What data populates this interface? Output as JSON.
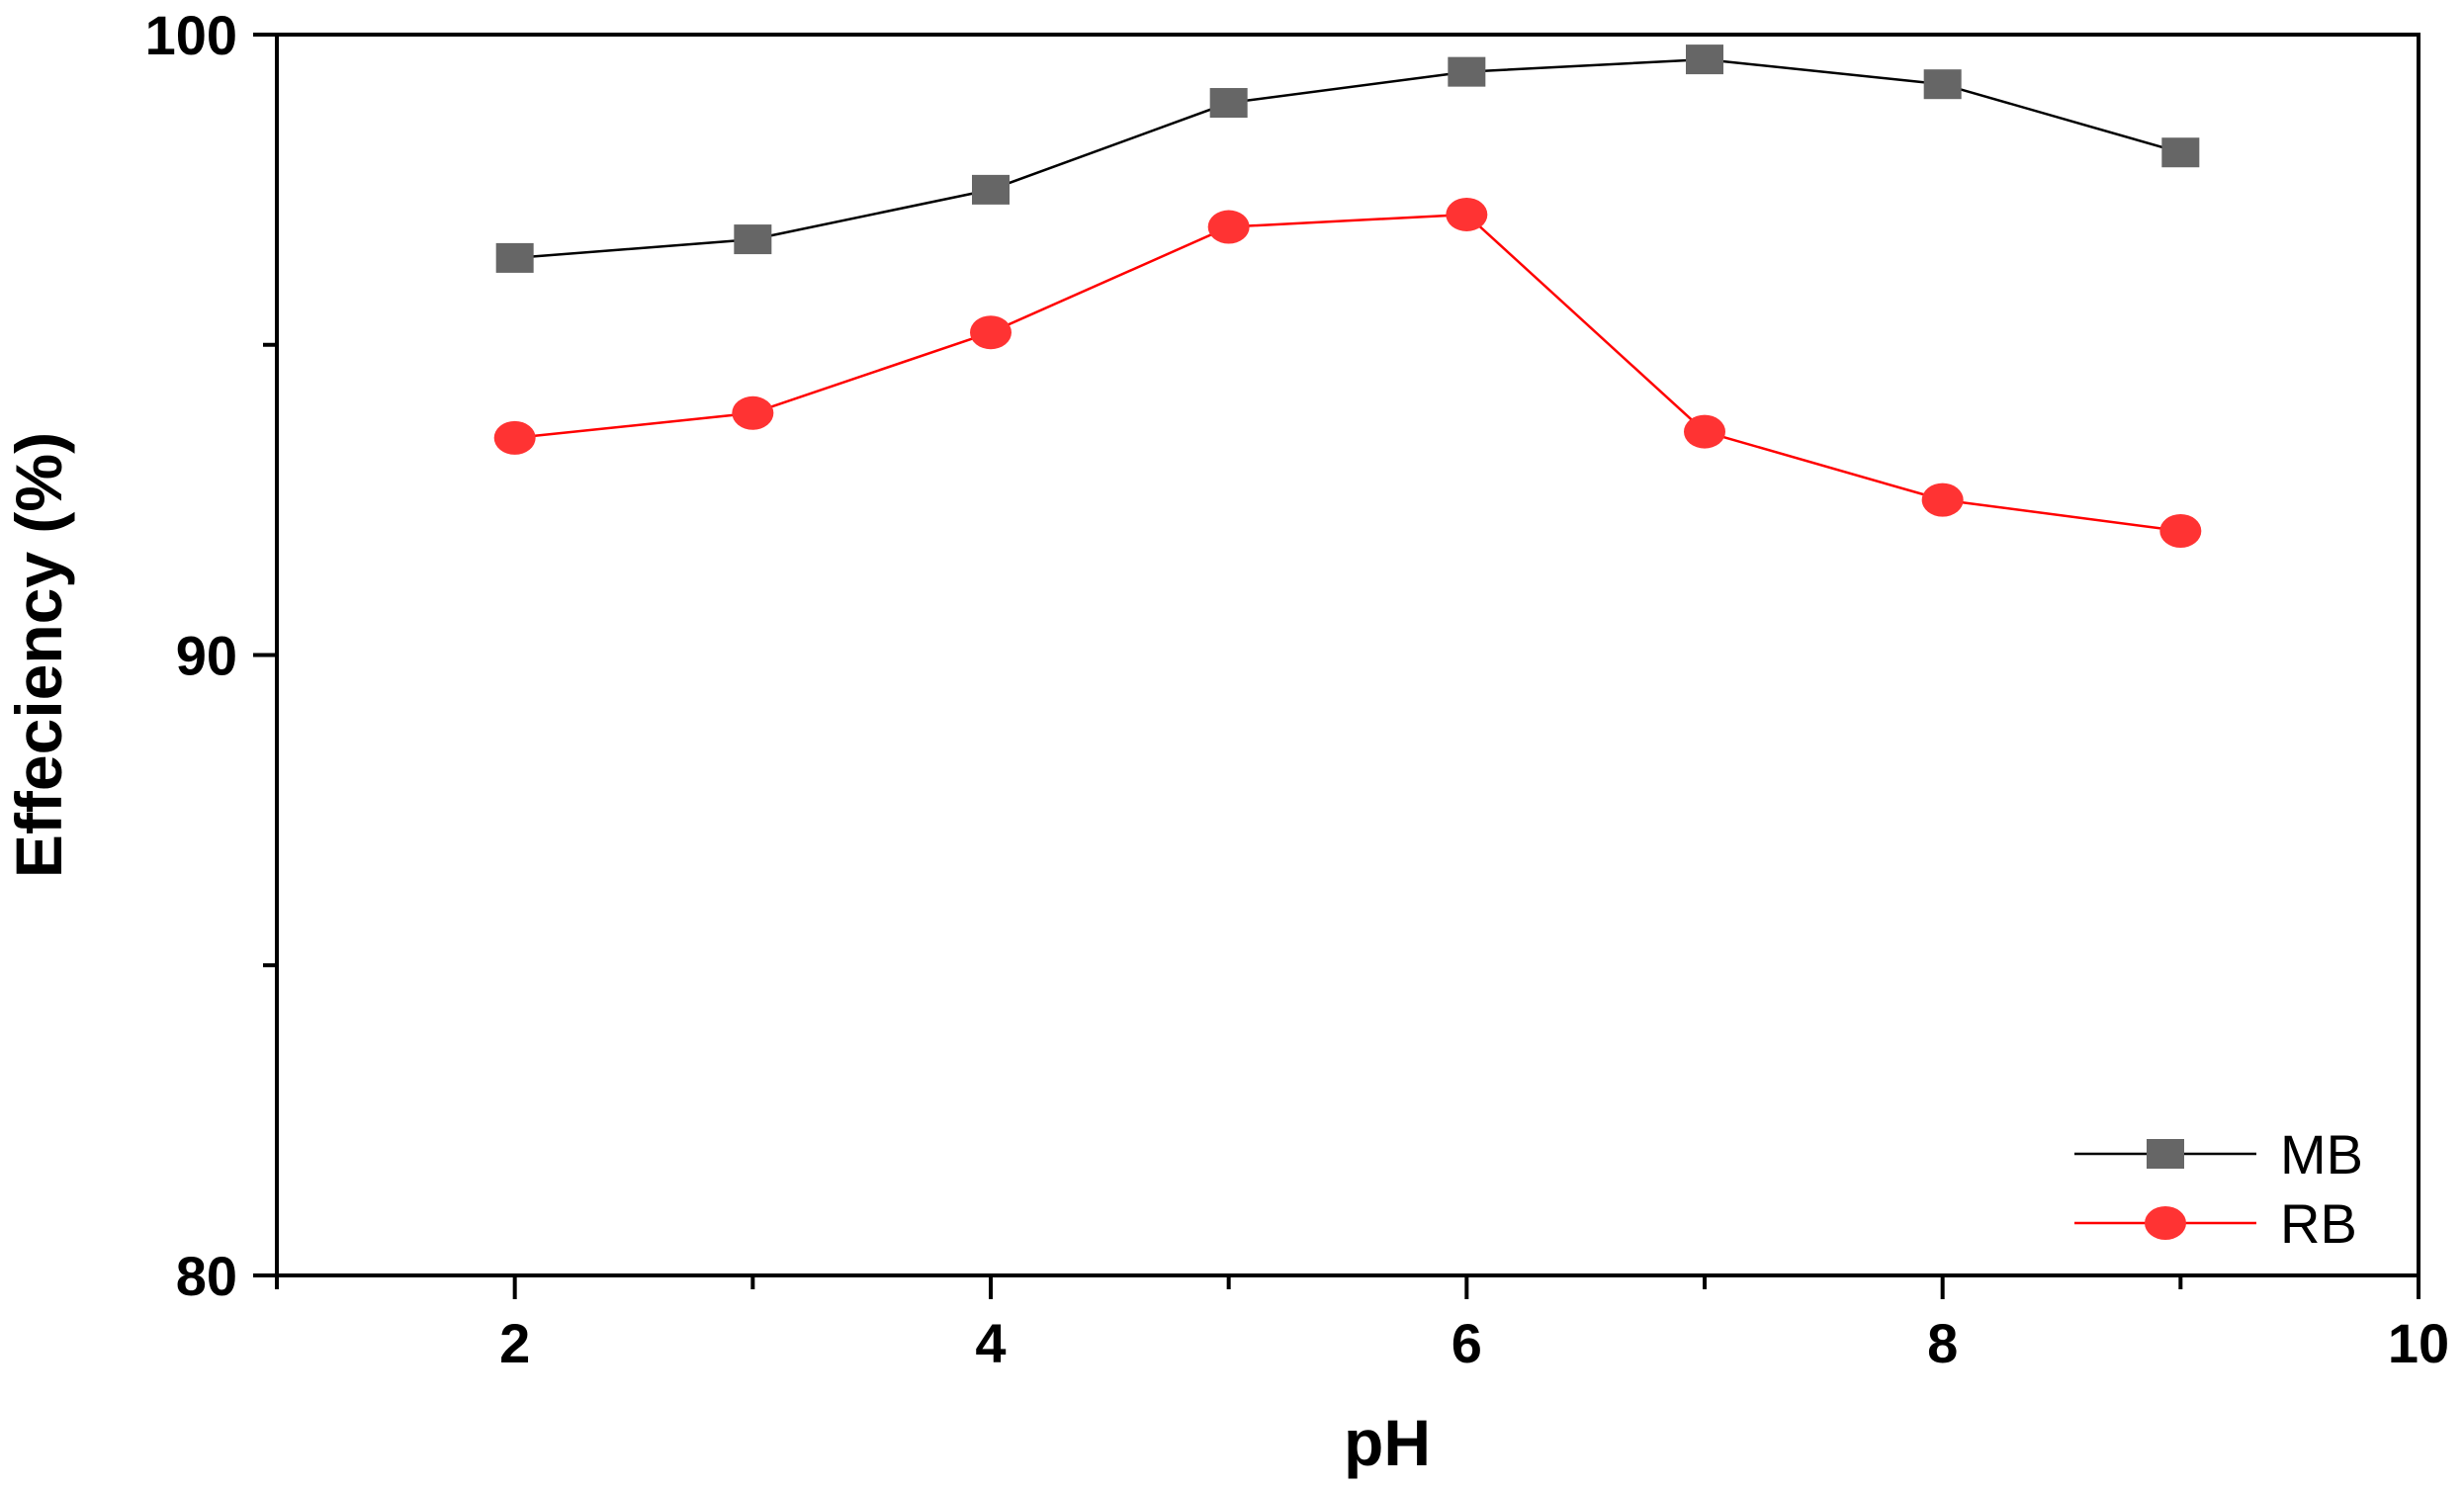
{
  "chart_data": {
    "type": "line",
    "title": "",
    "xlabel": "pH",
    "ylabel": "Effeciency (%)",
    "xlim": [
      1,
      10
    ],
    "ylim": [
      80,
      100
    ],
    "x_ticks": [
      2,
      4,
      6,
      8,
      10
    ],
    "y_ticks": [
      80,
      90,
      100
    ],
    "x_minor_ticks": [
      1,
      3,
      5,
      7,
      9
    ],
    "y_minor_ticks": [
      85,
      95
    ],
    "grid": false,
    "legend_position": "bottom-right",
    "series": [
      {
        "name": "MB",
        "marker": "square",
        "line_color": "#000000",
        "marker_color": "#666666",
        "x": [
          2,
          3,
          4,
          5,
          6,
          7,
          8,
          9
        ],
        "y": [
          96.4,
          96.7,
          97.5,
          98.9,
          99.4,
          99.6,
          99.2,
          98.1
        ]
      },
      {
        "name": "RB",
        "marker": "circle",
        "line_color": "#ff0000",
        "marker_color": "#ff3333",
        "x": [
          2,
          3,
          4,
          5,
          6,
          7,
          8,
          9
        ],
        "y": [
          93.5,
          93.9,
          95.2,
          96.9,
          97.1,
          93.6,
          92.5,
          92.0
        ]
      }
    ]
  }
}
